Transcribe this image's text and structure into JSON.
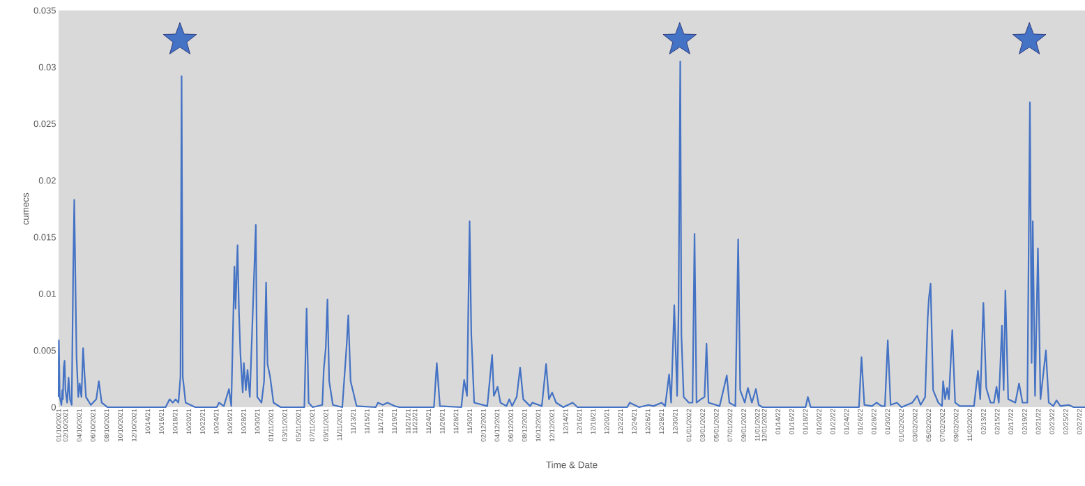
{
  "chart_data": {
    "type": "line",
    "xlabel": "Time & Date",
    "ylabel": "cumecs",
    "xlim": [
      "2021-10-01T00:00",
      "2022-02-27T20:00"
    ],
    "ylim": [
      0,
      0.035
    ],
    "yticks": [
      0,
      0.005,
      0.01,
      0.015,
      0.02,
      0.025,
      0.03,
      0.035
    ],
    "xticks": [
      {
        "value": "2021-10-01",
        "label": "01/10/2021"
      },
      {
        "value": "2021-10-02",
        "label": "02/10/2021"
      },
      {
        "value": "2021-10-04",
        "label": "04/10/2021"
      },
      {
        "value": "2021-10-06",
        "label": "06/10/2021"
      },
      {
        "value": "2021-10-08",
        "label": "08/10/2021"
      },
      {
        "value": "2021-10-10",
        "label": "10/10/2021"
      },
      {
        "value": "2021-10-12",
        "label": "12/10/2021"
      },
      {
        "value": "2021-10-14",
        "label": "10/14/21"
      },
      {
        "value": "2021-10-16",
        "label": "10/16/21"
      },
      {
        "value": "2021-10-18",
        "label": "10/18/21"
      },
      {
        "value": "2021-10-20",
        "label": "10/20/21"
      },
      {
        "value": "2021-10-22",
        "label": "10/22/21"
      },
      {
        "value": "2021-10-24",
        "label": "10/24/21"
      },
      {
        "value": "2021-10-26",
        "label": "10/26/21"
      },
      {
        "value": "2021-10-28",
        "label": "10/28/21"
      },
      {
        "value": "2021-10-30",
        "label": "10/30/21"
      },
      {
        "value": "2021-11-01",
        "label": "01/11/2021"
      },
      {
        "value": "2021-11-03",
        "label": "03/11/2021"
      },
      {
        "value": "2021-11-05",
        "label": "05/11/2021"
      },
      {
        "value": "2021-11-07",
        "label": "07/11/2021"
      },
      {
        "value": "2021-11-09",
        "label": "09/11/2021"
      },
      {
        "value": "2021-11-11",
        "label": "11/11/2021"
      },
      {
        "value": "2021-11-13",
        "label": "11/13/21"
      },
      {
        "value": "2021-11-15",
        "label": "11/15/21"
      },
      {
        "value": "2021-11-17",
        "label": "11/17/21"
      },
      {
        "value": "2021-11-19",
        "label": "11/19/21"
      },
      {
        "value": "2021-11-21",
        "label": "11/21/21"
      },
      {
        "value": "2021-11-22",
        "label": "11/22/21"
      },
      {
        "value": "2021-11-24",
        "label": "11/24/21"
      },
      {
        "value": "2021-11-26",
        "label": "11/26/21"
      },
      {
        "value": "2021-11-28",
        "label": "11/28/21"
      },
      {
        "value": "2021-11-30",
        "label": "11/30/21"
      },
      {
        "value": "2021-12-02",
        "label": "02/12/2021"
      },
      {
        "value": "2021-12-04",
        "label": "04/12/2021"
      },
      {
        "value": "2021-12-06",
        "label": "06/12/2021"
      },
      {
        "value": "2021-12-08",
        "label": "08/12/2021"
      },
      {
        "value": "2021-12-10",
        "label": "10/12/2021"
      },
      {
        "value": "2021-12-12",
        "label": "12/12/2021"
      },
      {
        "value": "2021-12-14",
        "label": "12/14/21"
      },
      {
        "value": "2021-12-16",
        "label": "12/16/21"
      },
      {
        "value": "2021-12-18",
        "label": "12/18/21"
      },
      {
        "value": "2021-12-20",
        "label": "12/20/21"
      },
      {
        "value": "2021-12-22",
        "label": "12/22/21"
      },
      {
        "value": "2021-12-24",
        "label": "12/24/21"
      },
      {
        "value": "2021-12-26",
        "label": "12/26/21"
      },
      {
        "value": "2021-12-28",
        "label": "12/28/21"
      },
      {
        "value": "2021-12-30",
        "label": "12/30/21"
      },
      {
        "value": "2022-01-01",
        "label": "01/01/2022"
      },
      {
        "value": "2022-01-03",
        "label": "03/01/2022"
      },
      {
        "value": "2022-01-05",
        "label": "05/01/2022"
      },
      {
        "value": "2022-01-07",
        "label": "07/01/2022"
      },
      {
        "value": "2022-01-09",
        "label": "09/01/2022"
      },
      {
        "value": "2022-01-11",
        "label": "11/01/2022"
      },
      {
        "value": "2022-01-12",
        "label": "12/01/2022"
      },
      {
        "value": "2022-01-14",
        "label": "01/14/22"
      },
      {
        "value": "2022-01-16",
        "label": "01/16/22"
      },
      {
        "value": "2022-01-18",
        "label": "01/18/22"
      },
      {
        "value": "2022-01-20",
        "label": "01/20/22"
      },
      {
        "value": "2022-01-22",
        "label": "01/22/22"
      },
      {
        "value": "2022-01-24",
        "label": "01/24/22"
      },
      {
        "value": "2022-01-26",
        "label": "01/26/22"
      },
      {
        "value": "2022-01-28",
        "label": "01/28/22"
      },
      {
        "value": "2022-01-30",
        "label": "01/30/22"
      },
      {
        "value": "2022-02-01",
        "label": "01/02/2022"
      },
      {
        "value": "2022-02-03",
        "label": "03/02/2022"
      },
      {
        "value": "2022-02-05",
        "label": "05/02/2022"
      },
      {
        "value": "2022-02-07",
        "label": "07/02/2022"
      },
      {
        "value": "2022-02-09",
        "label": "09/02/2022"
      },
      {
        "value": "2022-02-11",
        "label": "11/02/2022"
      },
      {
        "value": "2022-02-13",
        "label": "02/13/22"
      },
      {
        "value": "2022-02-15",
        "label": "02/15/22"
      },
      {
        "value": "2022-02-17",
        "label": "02/17/22"
      },
      {
        "value": "2022-02-19",
        "label": "02/19/22"
      },
      {
        "value": "2022-02-21",
        "label": "02/21/22"
      },
      {
        "value": "2022-02-23",
        "label": "02/23/22"
      },
      {
        "value": "2022-02-25",
        "label": "02/25/22"
      },
      {
        "value": "2022-02-27",
        "label": "02/27/22"
      }
    ],
    "series": [
      {
        "color": "#4472c4",
        "x": [
          "2021-10-01T00:00",
          "2021-10-01T01:00",
          "2021-10-01T04:00",
          "2021-10-01T10:00",
          "2021-10-01T13:00",
          "2021-10-01T15:00",
          "2021-10-01T18:00",
          "2021-10-01T21:00",
          "2021-10-02T00:00",
          "2021-10-02T06:00",
          "2021-10-02T11:00",
          "2021-10-02T16:00",
          "2021-10-02T22:00",
          "2021-10-03T03:00",
          "2021-10-03T07:00",
          "2021-10-03T12:00",
          "2021-10-03T15:00",
          "2021-10-03T21:00",
          "2021-10-04T02:00",
          "2021-10-04T08:00",
          "2021-10-04T14:00",
          "2021-10-04T19:00",
          "2021-10-05T00:00",
          "2021-10-05T17:00",
          "2021-10-06T12:00",
          "2021-10-06T21:00",
          "2021-10-07T07:00",
          "2021-10-08T03:00",
          "2021-10-16T15:00",
          "2021-10-17T05:00",
          "2021-10-17T16:00",
          "2021-10-18T02:00",
          "2021-10-18T12:00",
          "2021-10-18T19:00",
          "2021-10-18T23:00",
          "2021-10-19T03:00",
          "2021-10-19T13:00",
          "2021-10-20T23:00",
          "2021-10-24T02:00",
          "2021-10-24T10:00",
          "2021-10-25T03:00",
          "2021-10-25T21:00",
          "2021-10-26T05:00",
          "2021-10-26T16:00",
          "2021-10-26T20:00",
          "2021-10-27T03:00",
          "2021-10-27T08:00",
          "2021-10-27T13:00",
          "2021-10-27T21:00",
          "2021-10-28T01:00",
          "2021-10-28T08:00",
          "2021-10-28T14:00",
          "2021-10-28T22:00",
          "2021-10-29T19:00",
          "2021-10-30T00:00",
          "2021-10-30T15:00",
          "2021-10-31T00:00",
          "2021-10-31T07:00",
          "2021-10-31T12:00",
          "2021-10-31T21:00",
          "2021-11-01T09:00",
          "2021-11-02T10:00",
          "2021-11-05T21:00",
          "2021-11-06T05:00",
          "2021-11-06T12:00",
          "2021-11-07T02:00",
          "2021-11-08T12:00",
          "2021-11-08T17:00",
          "2021-11-09T00:00",
          "2021-11-09T06:00",
          "2021-11-09T12:00",
          "2021-11-10T01:00",
          "2021-11-11T10:00",
          "2021-11-12T01:00",
          "2021-11-12T07:00",
          "2021-11-12T15:00",
          "2021-11-13T12:00",
          "2021-11-16T07:00",
          "2021-11-16T15:00",
          "2021-11-17T08:00",
          "2021-11-18T00:00",
          "2021-11-19T01:00",
          "2021-11-19T18:00",
          "2021-11-24T19:00",
          "2021-11-25T05:00",
          "2021-11-25T16:00",
          "2021-11-28T19:00",
          "2021-11-29T05:00",
          "2021-11-29T15:00",
          "2021-11-30T00:00",
          "2021-11-30T06:00",
          "2021-11-30T16:00",
          "2021-12-02T14:00",
          "2021-12-03T07:00",
          "2021-12-03T13:00",
          "2021-12-04T02:00",
          "2021-12-04T12:00",
          "2021-12-05T09:00",
          "2021-12-05T19:00",
          "2021-12-06T05:00",
          "2021-12-06T21:00",
          "2021-12-07T09:00",
          "2021-12-07T20:00",
          "2021-12-08T20:00",
          "2021-12-09T04:00",
          "2021-12-10T13:00",
          "2021-12-11T04:00",
          "2021-12-11T14:00",
          "2021-12-12T01:00",
          "2021-12-12T15:00",
          "2021-12-13T16:00",
          "2021-12-15T01:00",
          "2021-12-15T18:00",
          "2021-12-23T00:00",
          "2021-12-23T09:00",
          "2021-12-24T01:00",
          "2021-12-24T18:00",
          "2021-12-26T03:00",
          "2021-12-26T20:00",
          "2021-12-28T01:00",
          "2021-12-28T13:00",
          "2021-12-29T03:00",
          "2021-12-29T10:00",
          "2021-12-29T21:00",
          "2021-12-30T07:00",
          "2021-12-30T12:00",
          "2021-12-30T18:00",
          "2021-12-30T22:00",
          "2021-12-31T06:00",
          "2022-01-01T00:00",
          "2022-01-01T13:00",
          "2022-01-01T20:00",
          "2022-01-02T03:00",
          "2022-01-02T18:00",
          "2022-01-03T07:00",
          "2022-01-03T14:00",
          "2022-01-03T21:00",
          "2022-01-05T12:00",
          "2022-01-06T13:00",
          "2022-01-06T22:00",
          "2022-01-07T19:00",
          "2022-01-08T05:00",
          "2022-01-08T12:00",
          "2022-01-09T04:00",
          "2022-01-09T15:00",
          "2022-01-10T05:00",
          "2022-01-10T19:00",
          "2022-01-11T05:00",
          "2022-01-11T18:00",
          "2022-01-18T01:00",
          "2022-01-18T09:00",
          "2022-01-18T19:00",
          "2022-01-25T20:00",
          "2022-01-26T05:00",
          "2022-01-26T15:00",
          "2022-01-27T18:00",
          "2022-01-28T10:00",
          "2022-01-29T03:00",
          "2022-01-29T15:00",
          "2022-01-30T01:00",
          "2022-01-30T11:00",
          "2022-01-31T09:00",
          "2022-02-01T01:00",
          "2022-02-02T15:00",
          "2022-02-03T08:00",
          "2022-02-03T20:00",
          "2022-02-04T12:00",
          "2022-02-04T21:00",
          "2022-02-05T01:00",
          "2022-02-05T07:00",
          "2022-02-05T16:00",
          "2022-02-06T10:00",
          "2022-02-06T23:00",
          "2022-02-07T03:00",
          "2022-02-07T10:00",
          "2022-02-07T17:00",
          "2022-02-07T23:00",
          "2022-02-08T11:00",
          "2022-02-08T21:00",
          "2022-02-09T13:00",
          "2022-02-11T15:00",
          "2022-02-12T05:00",
          "2022-02-12T13:00",
          "2022-02-13T00:00",
          "2022-02-13T10:00",
          "2022-02-14T01:00",
          "2022-02-14T13:00",
          "2022-02-14T22:00",
          "2022-02-15T06:00",
          "2022-02-15T17:00",
          "2022-02-15T23:00",
          "2022-02-16T05:00",
          "2022-02-16T15:00",
          "2022-02-17T16:00",
          "2022-02-18T05:00",
          "2022-02-18T17:00",
          "2022-02-19T10:00",
          "2022-02-19T19:00",
          "2022-02-20T01:00",
          "2022-02-20T05:00",
          "2022-02-20T13:00",
          "2022-02-20T23:00",
          "2022-02-21T08:00",
          "2022-02-22T03:00",
          "2022-02-22T13:00",
          "2022-02-23T05:00",
          "2022-02-23T16:00",
          "2022-02-24T06:00",
          "2022-02-25T11:00",
          "2022-02-26T04:00",
          "2022-02-27T20:00"
        ],
        "values": [
          0.0009,
          0.0059,
          0.0009,
          0.0002,
          0.0015,
          0.0007,
          0.0035,
          0.0041,
          0.0015,
          0.0004,
          0.0026,
          0.0007,
          0.0002,
          0.0117,
          0.0183,
          0.0093,
          0.0044,
          0.0009,
          0.0021,
          0.0009,
          0.0052,
          0.0029,
          0.0009,
          0.0002,
          0.0007,
          0.0023,
          0.0004,
          0,
          0,
          0.0007,
          0.0004,
          0.0007,
          0.0004,
          0.0027,
          0.0292,
          0.0027,
          0.0004,
          0,
          0,
          0.0004,
          0.0001,
          0.0016,
          0.0001,
          0.0124,
          0.0087,
          0.0143,
          0.0084,
          0.0047,
          0.0013,
          0.0039,
          0.0015,
          0.0033,
          0.0009,
          0.0161,
          0.0009,
          0.0004,
          0.0023,
          0.011,
          0.0038,
          0.0027,
          0.0004,
          0,
          0,
          0.0087,
          0.0004,
          0,
          0.0002,
          0.0033,
          0.0052,
          0.0095,
          0.0023,
          0.0002,
          0,
          0.0054,
          0.0081,
          0.0023,
          0.0001,
          0,
          0.0004,
          0.0002,
          0.0004,
          0.0001,
          0,
          0,
          0.0039,
          0.0001,
          0,
          0.0024,
          0.001,
          0.0164,
          0.0064,
          0.0004,
          0.0001,
          0.0046,
          0.001,
          0.0018,
          0.0004,
          0.0001,
          0.0007,
          0.0001,
          0.0009,
          0.0035,
          0.0007,
          0.0001,
          0.0004,
          0.0001,
          0.0038,
          0.0007,
          0.0013,
          0.0004,
          0,
          0.0004,
          0,
          0,
          0.0004,
          0.0002,
          0,
          0.0002,
          0.0001,
          0.0004,
          0.0001,
          0.0029,
          0.0004,
          0.009,
          0.001,
          0.0085,
          0.0305,
          0.0064,
          0.0009,
          0.0004,
          0.0004,
          0.0153,
          0.0004,
          0.0007,
          0.0009,
          0.0056,
          0.0004,
          0.0001,
          0.0028,
          0.0004,
          0.0001,
          0.0148,
          0.0015,
          0.0004,
          0.0017,
          0.0004,
          0.0016,
          0.0002,
          0,
          0,
          0.0009,
          0,
          0,
          0.0044,
          0.0002,
          0.0001,
          0.0004,
          0.0001,
          0.0001,
          0.0059,
          0.0002,
          0.0004,
          0,
          0.0004,
          0.001,
          0.0002,
          0.0009,
          0.0079,
          0.0096,
          0.0109,
          0.0015,
          0.0004,
          0.0001,
          0.0023,
          0.0007,
          0.0017,
          0.0007,
          0.0068,
          0.0004,
          0.0001,
          0.0001,
          0.0032,
          0.0007,
          0.0092,
          0.0017,
          0.0004,
          0.0004,
          0.0018,
          0.0004,
          0.0072,
          0.0015,
          0.0103,
          0.0007,
          0.0004,
          0.0021,
          0.0004,
          0.0004,
          0.0269,
          0.0039,
          0.0164,
          0.001,
          0.014,
          0.0007,
          0.005,
          0.0004,
          0.0001,
          0.0006,
          0.0001,
          0.0002,
          0,
          0
        ]
      },
      {
        "type": "scatter",
        "marker": "star",
        "color": "#4472c4",
        "x": [
          "2021-10-18T17:00",
          "2021-12-30T16:00",
          "2022-02-19T17:00"
        ],
        "values": [
          0.0324,
          0.0324,
          0.0324
        ]
      }
    ]
  }
}
